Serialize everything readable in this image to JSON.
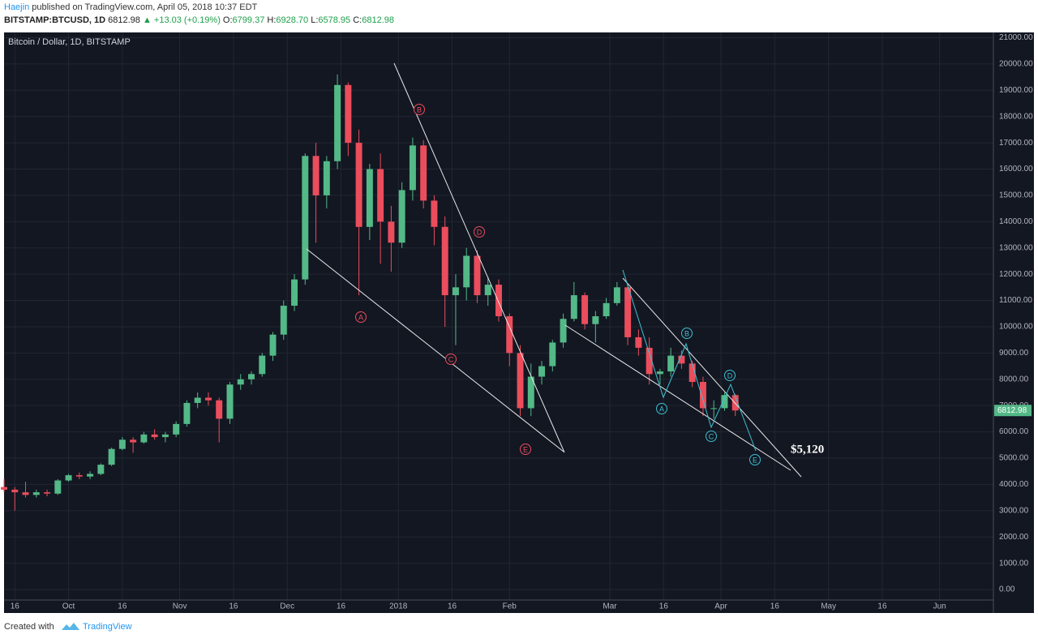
{
  "header": {
    "author": "Haejin",
    "published": "published on TradingView.com, April 05, 2018 10:37 EDT",
    "symbol": "BITSTAMP:BTCUSD, 1D",
    "last": "6812.98",
    "change": "▲ +13.03 (+0.19%)",
    "ohlc": [
      {
        "label": "O:",
        "value": "6799.37"
      },
      {
        "label": "H:",
        "value": "6928.70"
      },
      {
        "label": "L:",
        "value": "6578.95"
      },
      {
        "label": "C:",
        "value": "6812.98"
      }
    ]
  },
  "footer": {
    "created": "Created with",
    "brand": "TradingView"
  },
  "chart_data": {
    "type": "candlestick",
    "legend": "Bitcoin / Dollar, 1D, BITSTAMP",
    "up_color": "#53b987",
    "down_color": "#eb4d5c",
    "grid": true,
    "xlim": [
      12,
      288
    ],
    "ylim": [
      -400,
      21200
    ],
    "xticks": [
      {
        "value": 15,
        "label": "16"
      },
      {
        "value": 30,
        "label": "Oct"
      },
      {
        "value": 45,
        "label": "16"
      },
      {
        "value": 61,
        "label": "Nov"
      },
      {
        "value": 76,
        "label": "16"
      },
      {
        "value": 91,
        "label": "Dec"
      },
      {
        "value": 106,
        "label": "16"
      },
      {
        "value": 122,
        "label": "2018"
      },
      {
        "value": 137,
        "label": "16"
      },
      {
        "value": 153,
        "label": "Feb"
      },
      {
        "value": 181,
        "label": "Mar"
      },
      {
        "value": 196,
        "label": "16"
      },
      {
        "value": 212,
        "label": "Apr"
      },
      {
        "value": 227,
        "label": "16"
      },
      {
        "value": 242,
        "label": "May"
      },
      {
        "value": 257,
        "label": "16"
      },
      {
        "value": 273,
        "label": "Jun"
      }
    ],
    "yticks": [
      {
        "value": 0,
        "label": "0.00"
      },
      {
        "value": 1000,
        "label": "1000.00"
      },
      {
        "value": 2000,
        "label": "2000.00"
      },
      {
        "value": 3000,
        "label": "3000.00"
      },
      {
        "value": 4000,
        "label": "4000.00"
      },
      {
        "value": 5000,
        "label": "5000.00"
      },
      {
        "value": 6000,
        "label": "6000.00"
      },
      {
        "value": 7000,
        "label": "7000.00"
      },
      {
        "value": 8000,
        "label": "8000.00"
      },
      {
        "value": 9000,
        "label": "9000.00"
      },
      {
        "value": 10000,
        "label": "10000.00"
      },
      {
        "value": 11000,
        "label": "11000.00"
      },
      {
        "value": 12000,
        "label": "12000.00"
      },
      {
        "value": 13000,
        "label": "13000.00"
      },
      {
        "value": 14000,
        "label": "14000.00"
      },
      {
        "value": 15000,
        "label": "15000.00"
      },
      {
        "value": 16000,
        "label": "16000.00"
      },
      {
        "value": 17000,
        "label": "17000.00"
      },
      {
        "value": 18000,
        "label": "18000.00"
      },
      {
        "value": 19000,
        "label": "19000.00"
      },
      {
        "value": 20000,
        "label": "20000.00"
      },
      {
        "value": 21000,
        "label": "21000.00"
      }
    ],
    "last_price": 6812.98,
    "candles": {
      "x": [
        12,
        15,
        18,
        21,
        24,
        27,
        30,
        33,
        36,
        39,
        42,
        45,
        48,
        51,
        54,
        57,
        60,
        63,
        66,
        69,
        72,
        75,
        78,
        81,
        84,
        87,
        90,
        93,
        96,
        99,
        102,
        105,
        108,
        111,
        114,
        117,
        120,
        123,
        126,
        129,
        132,
        135,
        138,
        141,
        144,
        147,
        150,
        153,
        156,
        159,
        162,
        165,
        168,
        171,
        174,
        177,
        180,
        183,
        186,
        189,
        192,
        195,
        198,
        201,
        204,
        207,
        210,
        213,
        216
      ],
      "open": [
        3900,
        3800,
        3700,
        3600,
        3700,
        3650,
        4150,
        4350,
        4300,
        4400,
        4750,
        5350,
        5700,
        5600,
        5900,
        5800,
        5900,
        6300,
        7100,
        7300,
        7200,
        6500,
        7800,
        8000,
        8200,
        8900,
        9700,
        10800,
        11800,
        16500,
        15000,
        16300,
        19200,
        17000,
        13800,
        16000,
        14000,
        13200,
        15200,
        16900,
        14800,
        13800,
        11200,
        11500,
        12700,
        11200,
        11600,
        10400,
        9000,
        6900,
        8100,
        8500,
        9400,
        10300,
        11200,
        10100,
        10400,
        10900,
        11500,
        9600,
        9200,
        8200,
        8300,
        8900,
        8600,
        7900,
        6900,
        6900,
        7400
      ],
      "high": [
        4200,
        3900,
        4100,
        3800,
        3800,
        4200,
        4400,
        4450,
        4500,
        4800,
        5400,
        5800,
        5800,
        6000,
        6100,
        6000,
        6400,
        7200,
        7500,
        7500,
        7300,
        7900,
        8200,
        8300,
        9000,
        9800,
        11000,
        12000,
        16600,
        17000,
        16500,
        19600,
        19300,
        17500,
        16200,
        16600,
        14600,
        15500,
        17200,
        17100,
        15000,
        14200,
        12000,
        13000,
        12900,
        11900,
        11800,
        10500,
        9300,
        8600,
        8700,
        9500,
        10500,
        11700,
        11300,
        10600,
        11100,
        11700,
        11600,
        9900,
        9600,
        8400,
        9200,
        9100,
        8700,
        8100,
        7200,
        7500,
        7450
      ],
      "low": [
        3700,
        3000,
        3500,
        3500,
        3550,
        3600,
        4100,
        4200,
        4200,
        4350,
        4700,
        5300,
        5200,
        5550,
        5700,
        5600,
        5800,
        6200,
        6900,
        7000,
        5600,
        6300,
        7600,
        7800,
        8100,
        8700,
        9500,
        10600,
        11600,
        13200,
        14500,
        16000,
        16500,
        11200,
        13300,
        12400,
        12100,
        13000,
        14800,
        14500,
        13100,
        10000,
        9300,
        11000,
        10900,
        10800,
        10200,
        8500,
        6600,
        6600,
        7800,
        8300,
        9200,
        10200,
        9900,
        9400,
        10300,
        10800,
        9300,
        8900,
        7800,
        7800,
        8100,
        8400,
        7700,
        6600,
        6500,
        6800,
        6600
      ],
      "close": [
        3800,
        3700,
        3600,
        3700,
        3650,
        4150,
        4350,
        4300,
        4400,
        4750,
        5350,
        5700,
        5600,
        5900,
        5800,
        5900,
        6300,
        7100,
        7300,
        7200,
        6500,
        7800,
        8000,
        8200,
        8900,
        9700,
        10800,
        11800,
        16500,
        15000,
        16300,
        19200,
        17000,
        13800,
        16000,
        14000,
        13200,
        15200,
        16900,
        14800,
        13800,
        11200,
        11500,
        12700,
        11200,
        11600,
        10400,
        9000,
        6900,
        8100,
        8500,
        9400,
        10300,
        11200,
        10100,
        10400,
        10900,
        11500,
        9600,
        9200,
        8200,
        8300,
        8900,
        8600,
        7900,
        6900,
        6900,
        7400,
        6812.98
      ]
    },
    "annotations": [
      "$5,120"
    ],
    "red_waves": [
      "A",
      "B",
      "C",
      "D",
      "E"
    ],
    "cyan_waves": [
      "A",
      "B",
      "C",
      "D",
      "E"
    ]
  }
}
